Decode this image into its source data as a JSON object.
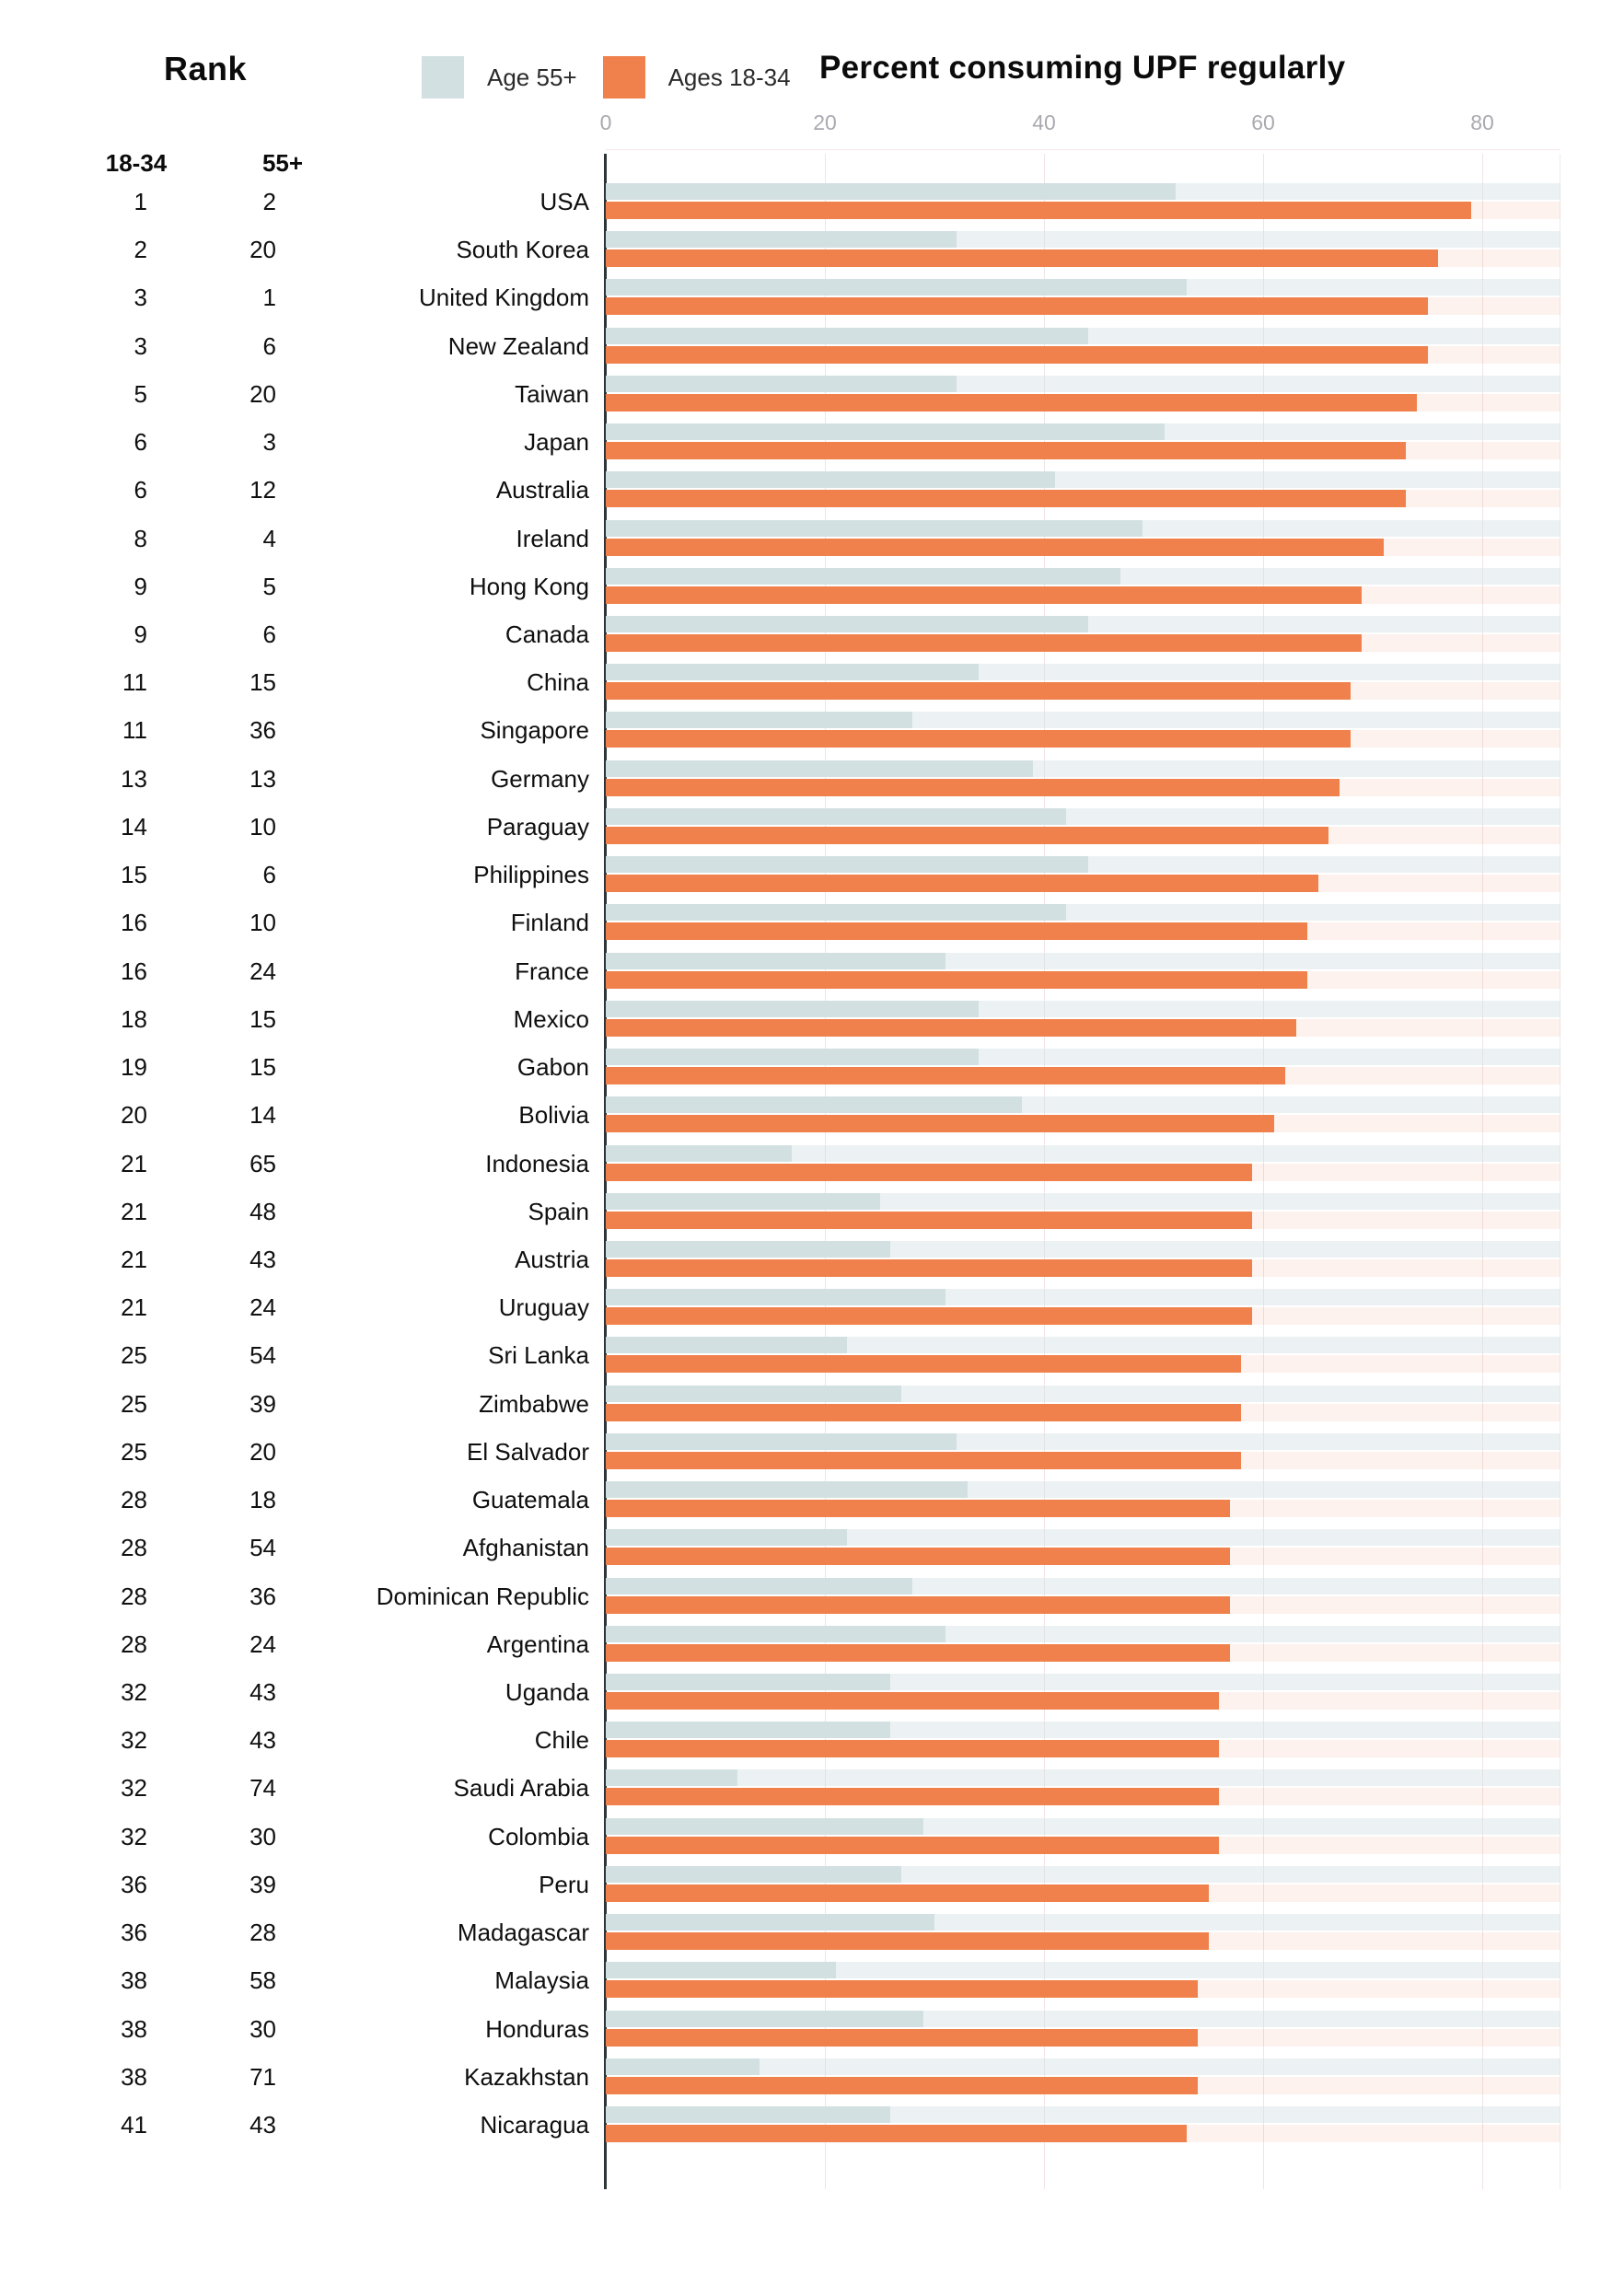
{
  "header": {
    "rank_label": "Rank",
    "title": "Percent consuming UPF regularly"
  },
  "legend": [
    {
      "label": "Age 55+",
      "color": "#D3E0E2"
    },
    {
      "label": "Ages 18-34",
      "color": "#F0814C"
    }
  ],
  "rank_columns": {
    "young": "18-34",
    "old": "55+"
  },
  "colors": {
    "bar_young": "#F0814C",
    "bar_old": "#D3E0E2",
    "track_young": "rgba(240,129,76,0.10)",
    "track_old": "rgba(205,222,226,0.38)",
    "axis": "#2E3538",
    "grid": "#F0E5E5",
    "tick_text": "#A9A9B0"
  },
  "chart_data": {
    "type": "bar",
    "orientation": "horizontal",
    "title": "Percent consuming UPF regularly",
    "xlabel": "",
    "ylabel": "",
    "x_ticks": [
      0,
      20,
      40,
      60,
      80
    ],
    "xlim": [
      0,
      87
    ],
    "grid": true,
    "legend_position": "top",
    "series_names": [
      "Age 55+",
      "Ages 18-34"
    ],
    "rows": [
      {
        "country": "USA",
        "rank_18_34": 1,
        "rank_55plus": 2,
        "pct_18_34": 79,
        "pct_55plus": 52
      },
      {
        "country": "South Korea",
        "rank_18_34": 2,
        "rank_55plus": 20,
        "pct_18_34": 76,
        "pct_55plus": 32
      },
      {
        "country": "United Kingdom",
        "rank_18_34": 3,
        "rank_55plus": 1,
        "pct_18_34": 75,
        "pct_55plus": 53
      },
      {
        "country": "New Zealand",
        "rank_18_34": 3,
        "rank_55plus": 6,
        "pct_18_34": 75,
        "pct_55plus": 44
      },
      {
        "country": "Taiwan",
        "rank_18_34": 5,
        "rank_55plus": 20,
        "pct_18_34": 74,
        "pct_55plus": 32
      },
      {
        "country": "Japan",
        "rank_18_34": 6,
        "rank_55plus": 3,
        "pct_18_34": 73,
        "pct_55plus": 51
      },
      {
        "country": "Australia",
        "rank_18_34": 6,
        "rank_55plus": 12,
        "pct_18_34": 73,
        "pct_55plus": 41
      },
      {
        "country": "Ireland",
        "rank_18_34": 8,
        "rank_55plus": 4,
        "pct_18_34": 71,
        "pct_55plus": 49
      },
      {
        "country": "Hong Kong",
        "rank_18_34": 9,
        "rank_55plus": 5,
        "pct_18_34": 69,
        "pct_55plus": 47
      },
      {
        "country": "Canada",
        "rank_18_34": 9,
        "rank_55plus": 6,
        "pct_18_34": 69,
        "pct_55plus": 44
      },
      {
        "country": "China",
        "rank_18_34": 11,
        "rank_55plus": 15,
        "pct_18_34": 68,
        "pct_55plus": 34
      },
      {
        "country": "Singapore",
        "rank_18_34": 11,
        "rank_55plus": 36,
        "pct_18_34": 68,
        "pct_55plus": 28
      },
      {
        "country": "Germany",
        "rank_18_34": 13,
        "rank_55plus": 13,
        "pct_18_34": 67,
        "pct_55plus": 39
      },
      {
        "country": "Paraguay",
        "rank_18_34": 14,
        "rank_55plus": 10,
        "pct_18_34": 66,
        "pct_55plus": 42
      },
      {
        "country": "Philippines",
        "rank_18_34": 15,
        "rank_55plus": 6,
        "pct_18_34": 65,
        "pct_55plus": 44
      },
      {
        "country": "Finland",
        "rank_18_34": 16,
        "rank_55plus": 10,
        "pct_18_34": 64,
        "pct_55plus": 42
      },
      {
        "country": "France",
        "rank_18_34": 16,
        "rank_55plus": 24,
        "pct_18_34": 64,
        "pct_55plus": 31
      },
      {
        "country": "Mexico",
        "rank_18_34": 18,
        "rank_55plus": 15,
        "pct_18_34": 63,
        "pct_55plus": 34
      },
      {
        "country": "Gabon",
        "rank_18_34": 19,
        "rank_55plus": 15,
        "pct_18_34": 62,
        "pct_55plus": 34
      },
      {
        "country": "Bolivia",
        "rank_18_34": 20,
        "rank_55plus": 14,
        "pct_18_34": 61,
        "pct_55plus": 38
      },
      {
        "country": "Indonesia",
        "rank_18_34": 21,
        "rank_55plus": 65,
        "pct_18_34": 59,
        "pct_55plus": 17
      },
      {
        "country": "Spain",
        "rank_18_34": 21,
        "rank_55plus": 48,
        "pct_18_34": 59,
        "pct_55plus": 25
      },
      {
        "country": "Austria",
        "rank_18_34": 21,
        "rank_55plus": 43,
        "pct_18_34": 59,
        "pct_55plus": 26
      },
      {
        "country": "Uruguay",
        "rank_18_34": 21,
        "rank_55plus": 24,
        "pct_18_34": 59,
        "pct_55plus": 31
      },
      {
        "country": "Sri Lanka",
        "rank_18_34": 25,
        "rank_55plus": 54,
        "pct_18_34": 58,
        "pct_55plus": 22
      },
      {
        "country": "Zimbabwe",
        "rank_18_34": 25,
        "rank_55plus": 39,
        "pct_18_34": 58,
        "pct_55plus": 27
      },
      {
        "country": "El Salvador",
        "rank_18_34": 25,
        "rank_55plus": 20,
        "pct_18_34": 58,
        "pct_55plus": 32
      },
      {
        "country": "Guatemala",
        "rank_18_34": 28,
        "rank_55plus": 18,
        "pct_18_34": 57,
        "pct_55plus": 33
      },
      {
        "country": "Afghanistan",
        "rank_18_34": 28,
        "rank_55plus": 54,
        "pct_18_34": 57,
        "pct_55plus": 22
      },
      {
        "country": "Dominican Republic",
        "rank_18_34": 28,
        "rank_55plus": 36,
        "pct_18_34": 57,
        "pct_55plus": 28
      },
      {
        "country": "Argentina",
        "rank_18_34": 28,
        "rank_55plus": 24,
        "pct_18_34": 57,
        "pct_55plus": 31
      },
      {
        "country": "Uganda",
        "rank_18_34": 32,
        "rank_55plus": 43,
        "pct_18_34": 56,
        "pct_55plus": 26
      },
      {
        "country": "Chile",
        "rank_18_34": 32,
        "rank_55plus": 43,
        "pct_18_34": 56,
        "pct_55plus": 26
      },
      {
        "country": "Saudi Arabia",
        "rank_18_34": 32,
        "rank_55plus": 74,
        "pct_18_34": 56,
        "pct_55plus": 12
      },
      {
        "country": "Colombia",
        "rank_18_34": 32,
        "rank_55plus": 30,
        "pct_18_34": 56,
        "pct_55plus": 29
      },
      {
        "country": "Peru",
        "rank_18_34": 36,
        "rank_55plus": 39,
        "pct_18_34": 55,
        "pct_55plus": 27
      },
      {
        "country": "Madagascar",
        "rank_18_34": 36,
        "rank_55plus": 28,
        "pct_18_34": 55,
        "pct_55plus": 30
      },
      {
        "country": "Malaysia",
        "rank_18_34": 38,
        "rank_55plus": 58,
        "pct_18_34": 54,
        "pct_55plus": 21
      },
      {
        "country": "Honduras",
        "rank_18_34": 38,
        "rank_55plus": 30,
        "pct_18_34": 54,
        "pct_55plus": 29
      },
      {
        "country": "Kazakhstan",
        "rank_18_34": 38,
        "rank_55plus": 71,
        "pct_18_34": 54,
        "pct_55plus": 14
      },
      {
        "country": "Nicaragua",
        "rank_18_34": 41,
        "rank_55plus": 43,
        "pct_18_34": 53,
        "pct_55plus": 26
      }
    ]
  }
}
